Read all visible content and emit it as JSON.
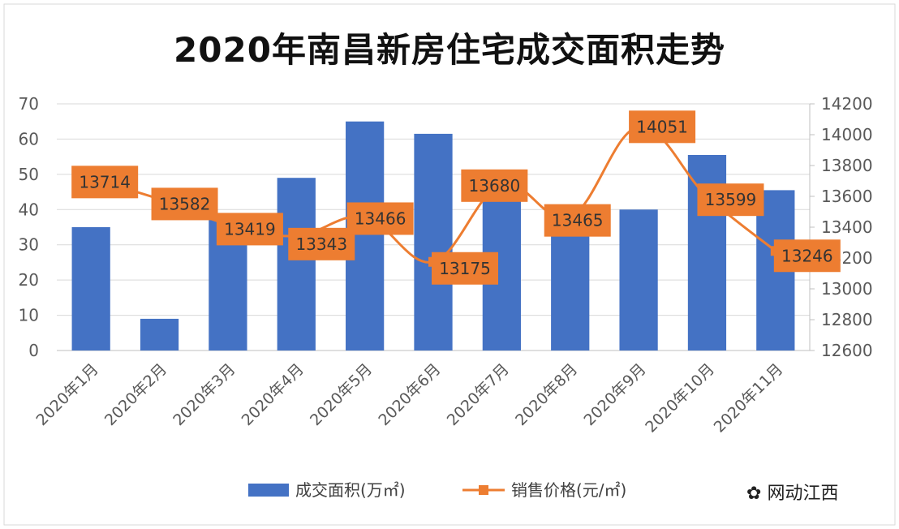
{
  "chart_data": {
    "type": "bar",
    "title": "2020年南昌新房住宅成交面积走势",
    "categories": [
      "2020年1月",
      "2020年2月",
      "2020年3月",
      "2020年4月",
      "2020年5月",
      "2020年6月",
      "2020年7月",
      "2020年8月",
      "2020年9月",
      "2020年10月",
      "2020年11月"
    ],
    "series": [
      {
        "name": "成交面积(万㎡)",
        "type": "bar",
        "axis": "left",
        "color": "#4472C4",
        "values": [
          35,
          9,
          38,
          49,
          65,
          61.5,
          43.5,
          35,
          40,
          55.5,
          45.5
        ]
      },
      {
        "name": "销售价格(元/㎡)",
        "type": "line",
        "axis": "right",
        "color": "#ED7D31",
        "values": [
          13714,
          13582,
          13419,
          13343,
          13466,
          13175,
          13680,
          13465,
          14051,
          13599,
          13246
        ],
        "labels": [
          "13714",
          "13582",
          "13419",
          "13343",
          "13466",
          "13175",
          "13680",
          "13465",
          "14051",
          "13599",
          "13246"
        ]
      }
    ],
    "y_left": {
      "ticks": [
        "0",
        "10",
        "20",
        "30",
        "40",
        "50",
        "60",
        "70"
      ],
      "range": [
        0,
        70
      ]
    },
    "y_right": {
      "ticks": [
        "12600",
        "12800",
        "13000",
        "13200",
        "13400",
        "13600",
        "13800",
        "14000",
        "14200"
      ],
      "range": [
        12600,
        14200
      ]
    },
    "grid": true,
    "legend_position": "bottom"
  },
  "watermark": "网动江西"
}
